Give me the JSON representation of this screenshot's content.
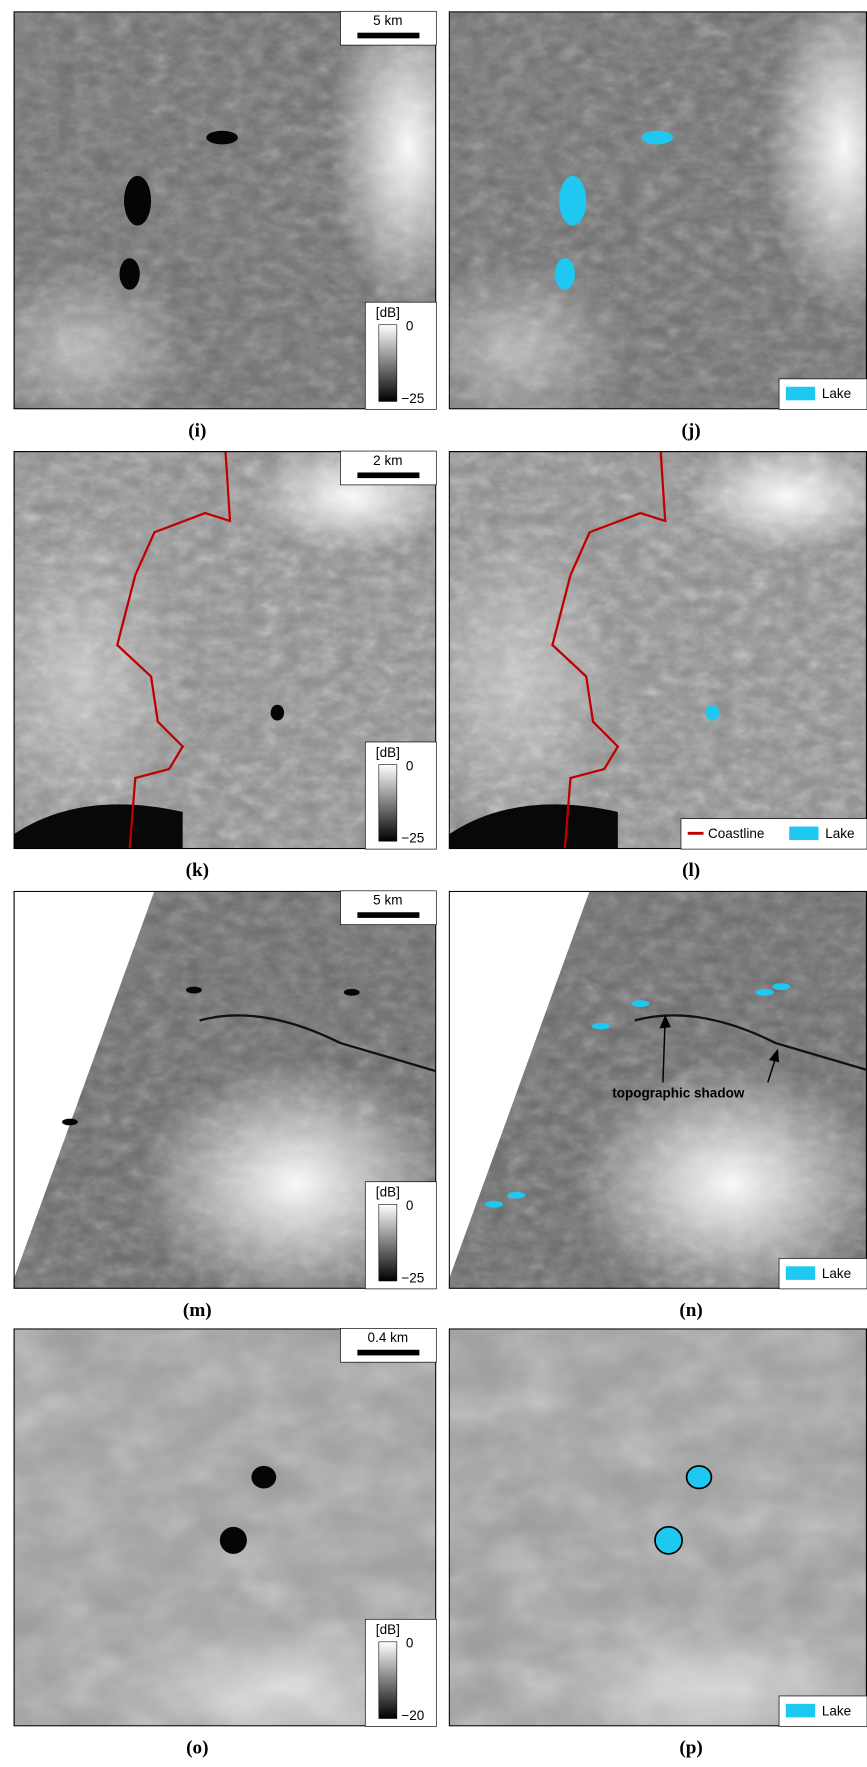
{
  "panels": [
    {
      "label": "(i)",
      "scale_bar": "5 km",
      "colorbar": {
        "unit": "[dB]",
        "top": "0",
        "bottom": "−25"
      }
    },
    {
      "label": "(j)",
      "legend": [
        {
          "name": "Lake",
          "color": "#1ec8f0",
          "marker": "box"
        }
      ]
    },
    {
      "label": "(k)",
      "scale_bar": "2 km",
      "colorbar": {
        "unit": "[dB]",
        "top": "0",
        "bottom": "−25"
      }
    },
    {
      "label": "(l)",
      "legend": [
        {
          "name": "Coastline",
          "color": "#c00000",
          "marker": "line"
        },
        {
          "name": "Lake",
          "color": "#1ec8f0",
          "marker": "box"
        }
      ]
    },
    {
      "label": "(m)",
      "scale_bar": "5 km",
      "colorbar": {
        "unit": "[dB]",
        "top": "0",
        "bottom": "−25"
      }
    },
    {
      "label": "(n)",
      "legend": [
        {
          "name": "Lake",
          "color": "#1ec8f0",
          "marker": "box"
        }
      ],
      "annotation": "topographic shadow"
    },
    {
      "label": "(o)",
      "scale_bar": "0.4 km",
      "colorbar": {
        "unit": "[dB]",
        "top": "0",
        "bottom": "−20"
      }
    },
    {
      "label": "(p)",
      "legend": [
        {
          "name": "Lake",
          "color": "#1ec8f0",
          "marker": "box"
        }
      ]
    }
  ]
}
